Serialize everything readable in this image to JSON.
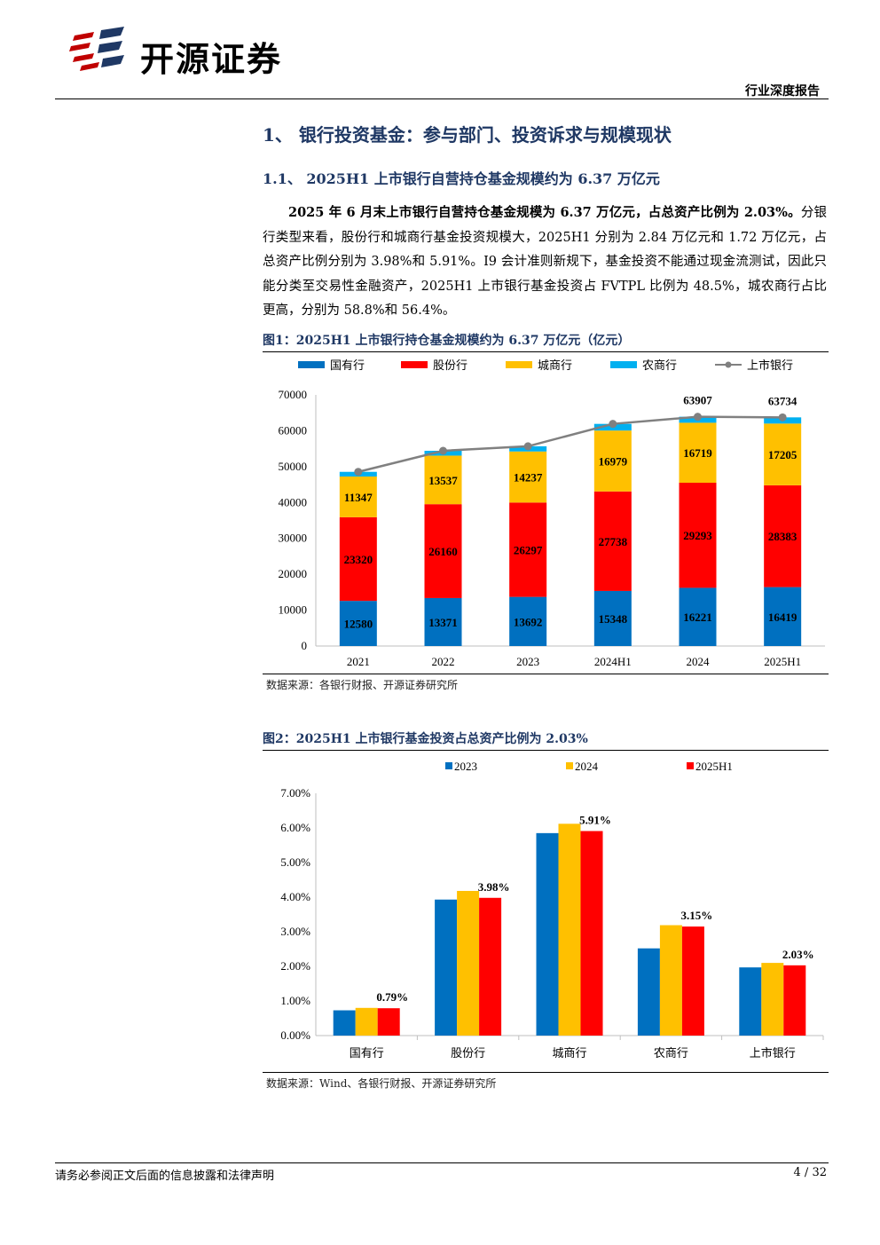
{
  "header": {
    "brand": "开源证券",
    "report_type": "行业深度报告"
  },
  "section": {
    "h1": "1、 银行投资基金：参与部门、投资诉求与规模现状",
    "h2": "1.1、 2025H1 上市银行自营持仓基金规模约为 6.37 万亿元",
    "para_bold": "2025 年 6 月末上市银行自营持仓基金规模为 6.37 万亿元，占总资产比例为 2.03%。",
    "para_rest": "分银行类型来看，股份行和城商行基金投资规模大，2025H1 分别为 2.84 万亿元和 1.72 万亿元，占总资产比例分别为 3.98%和 5.91%。I9 会计准则新规下，基金投资不能通过现金流测试，因此只能分类至交易性金融资产，2025H1 上市银行基金投资占 FVTPL 比例为 48.5%，城农商行占比更高，分别为 58.8%和 56.4%。"
  },
  "figure1": {
    "title": "图1：2025H1 上市银行持仓基金规模约为 6.37 万亿元（亿元）",
    "source": "数据来源：各银行财报、开源证券研究所"
  },
  "figure2": {
    "title": "图2：2025H1 上市银行基金投资占总资产比例为 2.03%",
    "source": "数据来源：Wind、各银行财报、开源证券研究所"
  },
  "footer": {
    "disclaimer": "请务必参阅正文后面的信息披露和法律声明",
    "page": "4 / 32"
  },
  "colors": {
    "blue": "#0070c0",
    "red": "#ff0000",
    "yellow": "#ffc000",
    "lightblue": "#00b0f0",
    "line": "#808080",
    "heading": "#1f3864"
  },
  "chart_data": [
    {
      "type": "bar",
      "stacked": true,
      "categories": [
        "2021",
        "2022",
        "2023",
        "2024H1",
        "2024",
        "2025H1"
      ],
      "series": [
        {
          "name": "国有行",
          "color": "#0070c0",
          "values": [
            12580,
            13371,
            13692,
            15348,
            16221,
            16419
          ]
        },
        {
          "name": "股份行",
          "color": "#ff0000",
          "values": [
            23320,
            26160,
            26297,
            27738,
            29293,
            28383
          ]
        },
        {
          "name": "城商行",
          "color": "#ffc000",
          "values": [
            11347,
            13537,
            14237,
            16979,
            16719,
            17205
          ]
        },
        {
          "name": "农商行",
          "color": "#00b0f0",
          "values": [
            1300,
            1350,
            1450,
            1850,
            1674,
            1727
          ]
        }
      ],
      "line": {
        "name": "上市银行",
        "color": "#808080",
        "values": [
          48547,
          54418,
          55676,
          61915,
          63907,
          63734
        ]
      },
      "line_labels": {
        "4": "63907",
        "5": "63734"
      },
      "ylim": [
        0,
        70000
      ],
      "yticks": [
        0,
        10000,
        20000,
        30000,
        40000,
        50000,
        60000,
        70000
      ],
      "legend": "top"
    },
    {
      "type": "bar",
      "categories": [
        "国有行",
        "股份行",
        "城商行",
        "农商行",
        "上市银行"
      ],
      "series": [
        {
          "name": "2023",
          "color": "#0070c0",
          "values": [
            0.73,
            3.93,
            5.85,
            2.52,
            1.97
          ]
        },
        {
          "name": "2024",
          "color": "#ffc000",
          "values": [
            0.8,
            4.18,
            6.12,
            3.19,
            2.1
          ]
        },
        {
          "name": "2025H1",
          "color": "#ff0000",
          "values": [
            0.79,
            3.98,
            5.91,
            3.15,
            2.03
          ]
        }
      ],
      "value_labels": [
        "0.79%",
        "3.98%",
        "5.91%",
        "3.15%",
        "2.03%"
      ],
      "ylim": [
        0,
        7
      ],
      "yticks": [
        "0.00%",
        "1.00%",
        "2.00%",
        "3.00%",
        "4.00%",
        "5.00%",
        "6.00%",
        "7.00%"
      ],
      "legend": "top"
    }
  ]
}
